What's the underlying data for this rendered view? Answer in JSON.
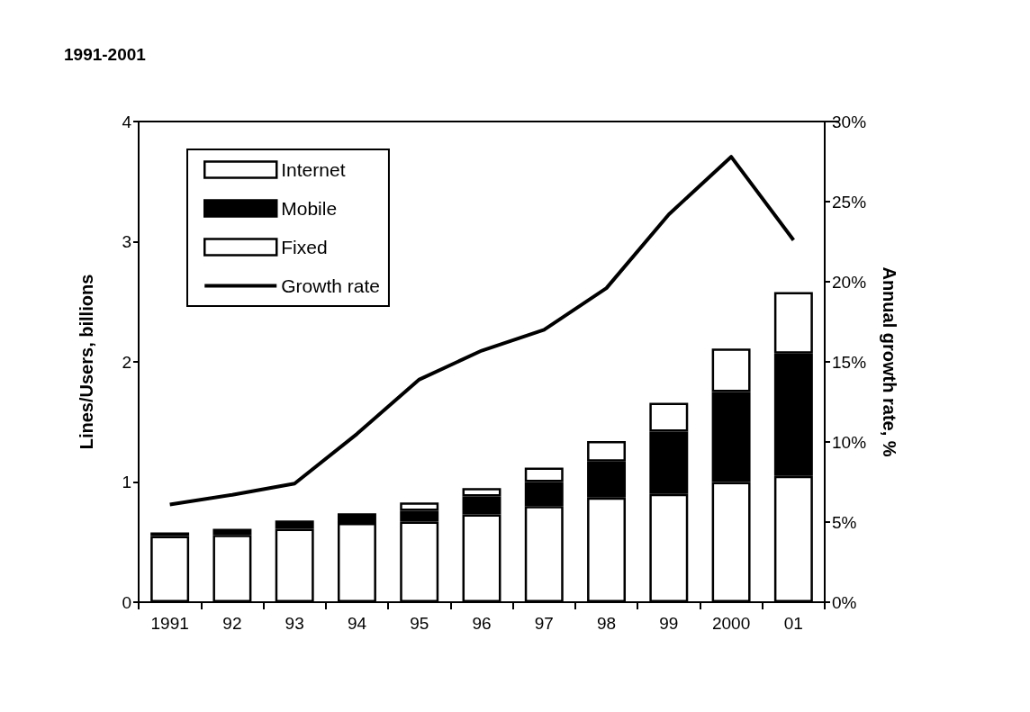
{
  "chart_data": {
    "type": "bar",
    "title": "1991-2001",
    "categories": [
      "1991",
      "92",
      "93",
      "94",
      "95",
      "96",
      "97",
      "98",
      "99",
      "2000",
      "01"
    ],
    "stacked": true,
    "xlabel": null,
    "ylabel": "Lines/Users, billions",
    "y2label": "Annual growth rate, %",
    "series": [
      {
        "name": "Fixed",
        "color": "#ffffff",
        "values": [
          0.55,
          0.56,
          0.61,
          0.66,
          0.67,
          0.73,
          0.8,
          0.87,
          0.9,
          1.0,
          1.05
        ]
      },
      {
        "name": "Mobile",
        "color": "#000000",
        "values": [
          0.03,
          0.05,
          0.07,
          0.08,
          0.09,
          0.15,
          0.2,
          0.3,
          0.52,
          0.75,
          1.02
        ]
      },
      {
        "name": "Internet",
        "color": "#ffffff",
        "values": [
          0,
          0,
          0,
          0,
          0.07,
          0.07,
          0.12,
          0.17,
          0.24,
          0.36,
          0.51
        ]
      },
      {
        "name": "Growth rate",
        "type": "line",
        "axis": "y2",
        "color": "#000000",
        "values": [
          6.1,
          6.7,
          7.4,
          10.5,
          13.9,
          15.7,
          17.0,
          19.6,
          24.2,
          27.8,
          22.6
        ]
      }
    ],
    "ylim": [
      0,
      4
    ],
    "yticks": [
      0,
      1,
      2,
      3,
      4
    ],
    "y2lim": [
      0,
      30
    ],
    "y2ticks": [
      {
        "value": 0,
        "label": "0%"
      },
      {
        "value": 5,
        "label": "5%"
      },
      {
        "value": 10,
        "label": "10%"
      },
      {
        "value": 15,
        "label": "15%"
      },
      {
        "value": 20,
        "label": "20%"
      },
      {
        "value": 25,
        "label": "25%"
      },
      {
        "value": 30,
        "label": "30%"
      }
    ],
    "legend": "top left",
    "grid": false,
    "marker": "none"
  }
}
